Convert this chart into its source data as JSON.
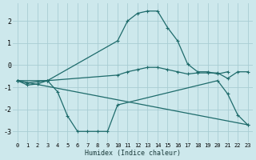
{
  "background_color": "#cde8ec",
  "grid_color": "#a8cdd4",
  "line_color": "#1e6b6b",
  "xlabel": "Humidex (Indice chaleur)",
  "xlim": [
    -0.5,
    23.5
  ],
  "ylim": [
    -3.5,
    2.8
  ],
  "yticks": [
    -3,
    -2,
    -1,
    0,
    1,
    2
  ],
  "xticks": [
    0,
    1,
    2,
    3,
    4,
    5,
    6,
    7,
    8,
    9,
    10,
    11,
    12,
    13,
    14,
    15,
    16,
    17,
    18,
    19,
    20,
    21,
    22,
    23
  ],
  "series": [
    {
      "x": [
        0,
        3,
        10,
        11,
        12,
        13,
        14,
        15,
        16,
        17,
        18,
        19,
        20,
        21
      ],
      "y": [
        -0.7,
        -0.7,
        1.1,
        2.0,
        2.35,
        2.45,
        2.45,
        1.7,
        1.1,
        0.05,
        -0.3,
        -0.3,
        -0.4,
        -0.3
      ]
    },
    {
      "x": [
        0,
        1,
        2,
        3,
        10,
        11,
        12,
        13,
        14,
        15,
        16,
        17,
        18,
        19,
        20,
        21,
        22,
        23
      ],
      "y": [
        -0.7,
        -0.8,
        -0.75,
        -0.7,
        -0.45,
        -0.3,
        -0.2,
        -0.1,
        -0.1,
        -0.2,
        -0.3,
        -0.4,
        -0.35,
        -0.35,
        -0.35,
        -0.6,
        -0.3,
        -0.3
      ]
    },
    {
      "x": [
        0,
        23
      ],
      "y": [
        -0.7,
        -2.7
      ]
    },
    {
      "x": [
        0,
        1,
        2,
        3,
        4,
        5,
        6,
        7,
        8,
        9,
        10,
        20,
        21,
        22,
        23
      ],
      "y": [
        -0.7,
        -0.9,
        -0.85,
        -0.7,
        -1.2,
        -2.3,
        -3.0,
        -3.0,
        -3.0,
        -3.0,
        -1.8,
        -0.7,
        -1.3,
        -2.25,
        -2.7
      ]
    }
  ]
}
